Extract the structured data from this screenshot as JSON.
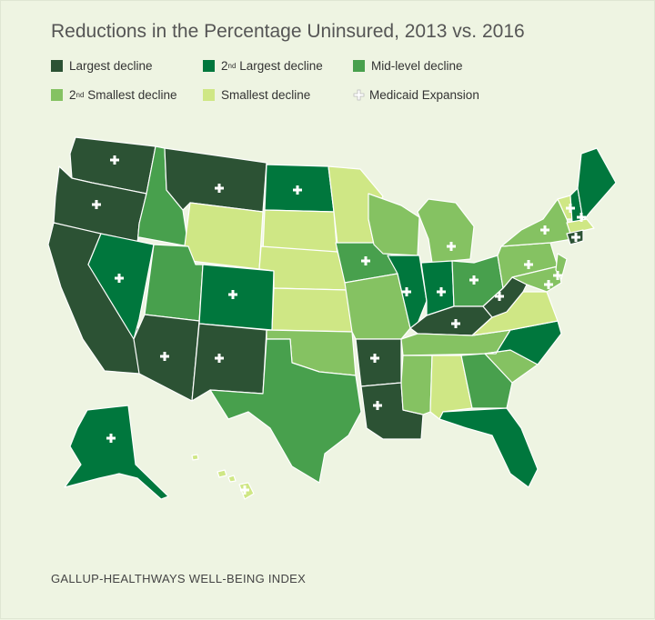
{
  "title": "Reductions in the Percentage Uninsured, 2013 vs. 2016",
  "legend": [
    {
      "id": "largest",
      "label": "Largest decline",
      "color": "#2c5234"
    },
    {
      "id": "second_largest",
      "ord": "2",
      "sup": "nd",
      "label": "Largest decline",
      "color": "#00773d"
    },
    {
      "id": "mid",
      "label": "Mid-level decline",
      "color": "#48a04d"
    },
    {
      "id": "second_smallest",
      "ord": "2",
      "sup": "nd",
      "label": "Smallest decline",
      "color": "#85c262"
    },
    {
      "id": "smallest",
      "label": "Smallest decline",
      "color": "#cfe785"
    },
    {
      "id": "expansion",
      "label": "Medicaid Expansion",
      "color": "#ffffff"
    }
  ],
  "source": "GALLUP-HEALTHWAYS WELL-BEING INDEX"
}
